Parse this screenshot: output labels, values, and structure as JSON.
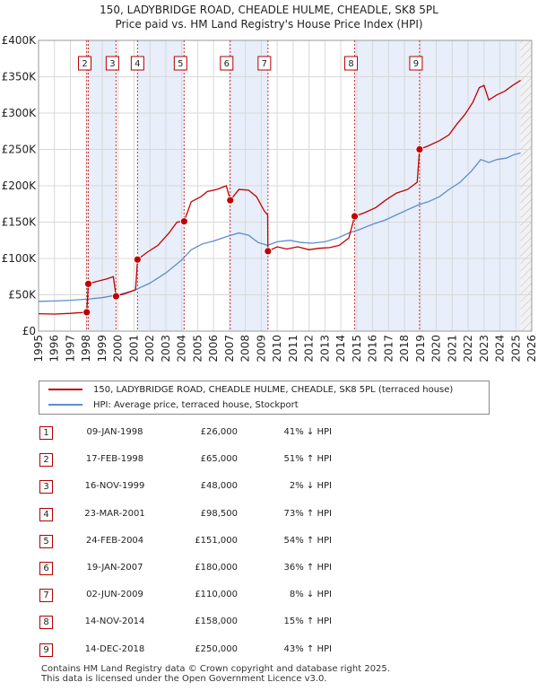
{
  "chart_data": {
    "type": "line",
    "title": "150, LADYBRIDGE ROAD, CHEADLE HULME, CHEADLE, SK8 5PL",
    "subtitle": "Price paid vs. HM Land Registry's House Price Index (HPI)",
    "xlabel": "",
    "ylabel": "",
    "xlim": [
      1995,
      2026
    ],
    "ylim": [
      0,
      400000
    ],
    "x_ticks": [
      "1995",
      "1996",
      "1997",
      "1998",
      "1999",
      "2000",
      "2001",
      "2002",
      "2003",
      "2004",
      "2005",
      "2006",
      "2007",
      "2008",
      "2009",
      "2010",
      "2011",
      "2012",
      "2013",
      "2014",
      "2015",
      "2016",
      "2017",
      "2018",
      "2019",
      "2020",
      "2021",
      "2022",
      "2023",
      "2024",
      "2025",
      "2026"
    ],
    "y_ticks": [
      {
        "value": 0,
        "label": "£0"
      },
      {
        "value": 50000,
        "label": "£50K"
      },
      {
        "value": 100000,
        "label": "£100K"
      },
      {
        "value": 150000,
        "label": "£150K"
      },
      {
        "value": 200000,
        "label": "£200K"
      },
      {
        "value": 250000,
        "label": "£250K"
      },
      {
        "value": 300000,
        "label": "£300K"
      },
      {
        "value": 350000,
        "label": "£350K"
      },
      {
        "value": 400000,
        "label": "£400K"
      }
    ],
    "grid": true,
    "future_shading_from": 2025.3,
    "series": [
      {
        "name": "150, LADYBRIDGE ROAD, CHEADLE HULME, CHEADLE, SK8 5PL (terraced house)",
        "color": "#c00000",
        "points": [
          [
            1995.0,
            24000
          ],
          [
            1996.0,
            23500
          ],
          [
            1997.0,
            24500
          ],
          [
            1998.03,
            26000
          ],
          [
            1998.13,
            65000
          ],
          [
            1998.6,
            68000
          ],
          [
            1999.3,
            72000
          ],
          [
            1999.7,
            75000
          ],
          [
            1999.87,
            48000
          ],
          [
            2000.5,
            52000
          ],
          [
            2001.1,
            57000
          ],
          [
            2001.22,
            98500
          ],
          [
            2001.8,
            108000
          ],
          [
            2002.5,
            118000
          ],
          [
            2003.2,
            135000
          ],
          [
            2003.7,
            150000
          ],
          [
            2004.15,
            151000
          ],
          [
            2004.6,
            178000
          ],
          [
            2005.2,
            185000
          ],
          [
            2005.6,
            192000
          ],
          [
            2006.2,
            195000
          ],
          [
            2006.8,
            200000
          ],
          [
            2007.05,
            180000
          ],
          [
            2007.6,
            195000
          ],
          [
            2008.2,
            194000
          ],
          [
            2008.7,
            185000
          ],
          [
            2009.2,
            165000
          ],
          [
            2009.4,
            160000
          ],
          [
            2009.42,
            110000
          ],
          [
            2010.0,
            116000
          ],
          [
            2010.6,
            113000
          ],
          [
            2011.3,
            116000
          ],
          [
            2012.0,
            112000
          ],
          [
            2012.6,
            114000
          ],
          [
            2013.3,
            115000
          ],
          [
            2013.9,
            118000
          ],
          [
            2014.5,
            128000
          ],
          [
            2014.87,
            158000
          ],
          [
            2015.5,
            163000
          ],
          [
            2016.2,
            170000
          ],
          [
            2016.8,
            180000
          ],
          [
            2017.5,
            190000
          ],
          [
            2018.2,
            195000
          ],
          [
            2018.8,
            205000
          ],
          [
            2018.95,
            250000
          ],
          [
            2019.5,
            255000
          ],
          [
            2020.2,
            262000
          ],
          [
            2020.8,
            270000
          ],
          [
            2021.3,
            285000
          ],
          [
            2021.8,
            298000
          ],
          [
            2022.3,
            315000
          ],
          [
            2022.7,
            335000
          ],
          [
            2023.0,
            338000
          ],
          [
            2023.3,
            318000
          ],
          [
            2023.8,
            325000
          ],
          [
            2024.3,
            330000
          ],
          [
            2024.8,
            338000
          ],
          [
            2025.3,
            345000
          ]
        ]
      },
      {
        "name": "HPI: Average price, terraced house, Stockport",
        "color": "#5b8fcc",
        "points": [
          [
            1995.0,
            41000
          ],
          [
            1996.0,
            41500
          ],
          [
            1997.0,
            42500
          ],
          [
            1998.0,
            44000
          ],
          [
            1999.0,
            46000
          ],
          [
            2000.0,
            50000
          ],
          [
            2001.0,
            56000
          ],
          [
            2002.0,
            66000
          ],
          [
            2003.0,
            80000
          ],
          [
            2004.0,
            98000
          ],
          [
            2004.6,
            112000
          ],
          [
            2005.3,
            120000
          ],
          [
            2006.0,
            124000
          ],
          [
            2006.8,
            130000
          ],
          [
            2007.6,
            135000
          ],
          [
            2008.2,
            132000
          ],
          [
            2008.8,
            122000
          ],
          [
            2009.4,
            118000
          ],
          [
            2010.0,
            123000
          ],
          [
            2010.8,
            125000
          ],
          [
            2011.5,
            122000
          ],
          [
            2012.2,
            121000
          ],
          [
            2013.0,
            123000
          ],
          [
            2013.8,
            128000
          ],
          [
            2014.5,
            135000
          ],
          [
            2015.2,
            140000
          ],
          [
            2016.0,
            147000
          ],
          [
            2016.8,
            153000
          ],
          [
            2017.5,
            160000
          ],
          [
            2018.2,
            167000
          ],
          [
            2018.9,
            174000
          ],
          [
            2019.5,
            178000
          ],
          [
            2020.2,
            185000
          ],
          [
            2020.8,
            195000
          ],
          [
            2021.5,
            205000
          ],
          [
            2022.2,
            220000
          ],
          [
            2022.8,
            236000
          ],
          [
            2023.3,
            232000
          ],
          [
            2023.8,
            236000
          ],
          [
            2024.4,
            238000
          ],
          [
            2024.9,
            243000
          ],
          [
            2025.3,
            245000
          ]
        ]
      }
    ],
    "sale_markers": [
      {
        "n": "1",
        "x": 1998.03,
        "y": 26000
      },
      {
        "n": "2",
        "x": 1998.13,
        "y": 65000
      },
      {
        "n": "3",
        "x": 1999.87,
        "y": 48000
      },
      {
        "n": "4",
        "x": 2001.22,
        "y": 98500
      },
      {
        "n": "5",
        "x": 2004.15,
        "y": 151000
      },
      {
        "n": "6",
        "x": 2007.05,
        "y": 180000
      },
      {
        "n": "7",
        "x": 2009.42,
        "y": 110000
      },
      {
        "n": "8",
        "x": 2014.87,
        "y": 158000
      },
      {
        "n": "9",
        "x": 2018.95,
        "y": 250000
      }
    ],
    "boxed_markers": [
      "2",
      "3",
      "4",
      "5",
      "6",
      "7",
      "8",
      "9"
    ]
  },
  "legend": {
    "property_label": "150, LADYBRIDGE ROAD, CHEADLE HULME, CHEADLE, SK8 5PL (terraced house)",
    "hpi_label": "HPI: Average price, terraced house, Stockport",
    "property_color": "#c00000",
    "hpi_color": "#5b8fcc"
  },
  "sales": [
    {
      "n": "1",
      "date": "09-JAN-1998",
      "price": "£26,000",
      "hpi": "41% ↓ HPI"
    },
    {
      "n": "2",
      "date": "17-FEB-1998",
      "price": "£65,000",
      "hpi": "51% ↑ HPI"
    },
    {
      "n": "3",
      "date": "16-NOV-1999",
      "price": "£48,000",
      "hpi": "2% ↓ HPI"
    },
    {
      "n": "4",
      "date": "23-MAR-2001",
      "price": "£98,500",
      "hpi": "73% ↑ HPI"
    },
    {
      "n": "5",
      "date": "24-FEB-2004",
      "price": "£151,000",
      "hpi": "54% ↑ HPI"
    },
    {
      "n": "6",
      "date": "19-JAN-2007",
      "price": "£180,000",
      "hpi": "36% ↑ HPI"
    },
    {
      "n": "7",
      "date": "02-JUN-2009",
      "price": "£110,000",
      "hpi": "8% ↓ HPI"
    },
    {
      "n": "8",
      "date": "14-NOV-2014",
      "price": "£158,000",
      "hpi": "15% ↑ HPI"
    },
    {
      "n": "9",
      "date": "14-DEC-2018",
      "price": "£250,000",
      "hpi": "43% ↑ HPI"
    }
  ],
  "footer": {
    "line1": "Contains HM Land Registry data © Crown copyright and database right 2025.",
    "line2": "This data is licensed under the Open Government Licence v3.0."
  }
}
